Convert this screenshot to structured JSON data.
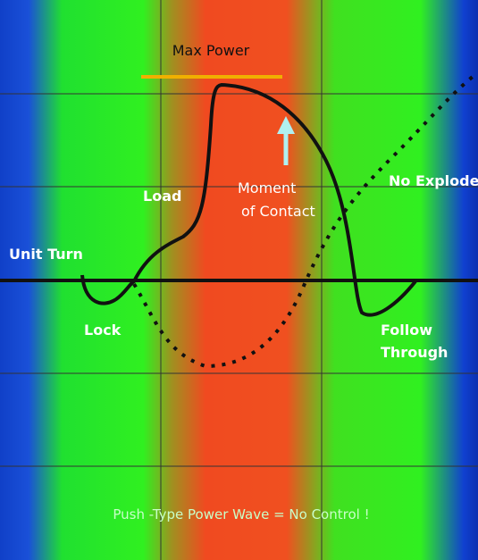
{
  "title": "Max Power",
  "labels": {
    "load": "Load",
    "moment_of_contact": [
      "Moment",
      "of Contact"
    ],
    "no_explode": "No Explode",
    "unit_turn": "Unit Turn",
    "lock": "Lock",
    "follow_through": [
      "Follow",
      "Through"
    ]
  },
  "caption": "Push -Type Power Wave = No Control !"
}
